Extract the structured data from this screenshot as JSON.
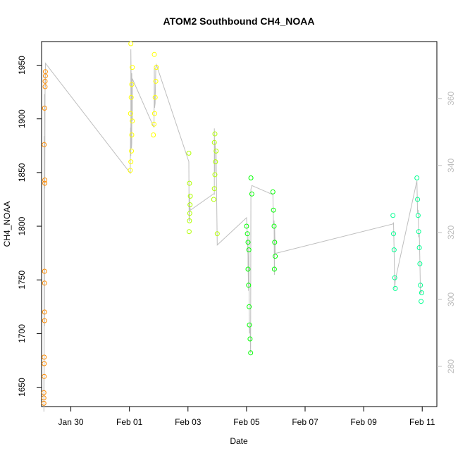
{
  "chart_data": {
    "type": "scatter",
    "title": "ATOM2 Southbound CH4_NOAA",
    "xlabel": "Date",
    "ylabel": "CH4_NOAA",
    "x_ticks": [
      "Jan 30",
      "Feb 01",
      "Feb 03",
      "Feb 05",
      "Feb 07",
      "Feb 09",
      "Feb 11"
    ],
    "y_ticks_left": [
      1650,
      1700,
      1750,
      1800,
      1850,
      1900,
      1950
    ],
    "y_ticks_right": [
      280,
      300,
      320,
      340,
      360
    ],
    "xlim": [
      "2017-01-29.0",
      "2017-02-11.5"
    ],
    "ylim_left": [
      1632,
      1972
    ],
    "ylim_right": [
      268,
      377
    ],
    "series": [
      {
        "color": "#ff8c00",
        "points": [
          [
            "2017-01-29.08",
            1645
          ],
          [
            "2017-01-29.08",
            1640
          ],
          [
            "2017-01-29.08",
            1635
          ],
          [
            "2017-01-29.09",
            1660
          ],
          [
            "2017-01-29.09",
            1672
          ],
          [
            "2017-01-29.09",
            1678
          ],
          [
            "2017-01-29.10",
            1712
          ],
          [
            "2017-01-29.10",
            1720
          ],
          [
            "2017-01-29.10",
            1747
          ],
          [
            "2017-01-29.10",
            1758
          ],
          [
            "2017-01-29.11",
            1840
          ],
          [
            "2017-01-29.11",
            1843
          ],
          [
            "2017-01-29.09",
            1876
          ],
          [
            "2017-01-29.10",
            1910
          ],
          [
            "2017-01-29.12",
            1930
          ],
          [
            "2017-01-29.12",
            1935
          ],
          [
            "2017-01-29.13",
            1940
          ],
          [
            "2017-01-29.13",
            1944
          ]
        ]
      },
      {
        "color": "#ffff00",
        "points": [
          [
            "2017-02-01.03",
            1852
          ],
          [
            "2017-02-01.05",
            1860
          ],
          [
            "2017-02-01.07",
            1870
          ],
          [
            "2017-02-01.08",
            1885
          ],
          [
            "2017-02-01.10",
            1898
          ],
          [
            "2017-02-01.04",
            1905
          ],
          [
            "2017-02-01.06",
            1920
          ],
          [
            "2017-02-01.08",
            1932
          ],
          [
            "2017-02-01.10",
            1948
          ],
          [
            "2017-02-01.05",
            1970
          ],
          [
            "2017-02-01.82",
            1885
          ],
          [
            "2017-02-01.84",
            1895
          ],
          [
            "2017-02-01.86",
            1905
          ],
          [
            "2017-02-01.88",
            1920
          ],
          [
            "2017-02-01.90",
            1935
          ],
          [
            "2017-02-01.92",
            1948
          ],
          [
            "2017-02-01.85",
            1960
          ]
        ]
      },
      {
        "color": "#b0ff00",
        "points": [
          [
            "2017-02-03.04",
            1795
          ],
          [
            "2017-02-03.05",
            1805
          ],
          [
            "2017-02-03.06",
            1812
          ],
          [
            "2017-02-03.07",
            1820
          ],
          [
            "2017-02-03.08",
            1828
          ],
          [
            "2017-02-03.05",
            1840
          ],
          [
            "2017-02-03.03",
            1868
          ],
          [
            "2017-02-03.88",
            1825
          ],
          [
            "2017-02-03.90",
            1835
          ],
          [
            "2017-02-03.92",
            1848
          ],
          [
            "2017-02-03.94",
            1860
          ],
          [
            "2017-02-03.96",
            1870
          ],
          [
            "2017-02-03.90",
            1878
          ],
          [
            "2017-02-03.92",
            1886
          ],
          [
            "2017-02-04.00",
            1793
          ]
        ]
      },
      {
        "color": "#00ff00",
        "points": [
          [
            "2017-02-05.00",
            1800
          ],
          [
            "2017-02-05.03",
            1793
          ],
          [
            "2017-02-05.05",
            1785
          ],
          [
            "2017-02-05.08",
            1778
          ],
          [
            "2017-02-05.05",
            1760
          ],
          [
            "2017-02-05.07",
            1745
          ],
          [
            "2017-02-05.09",
            1725
          ],
          [
            "2017-02-05.10",
            1708
          ],
          [
            "2017-02-05.12",
            1695
          ],
          [
            "2017-02-05.14",
            1682
          ],
          [
            "2017-02-05.15",
            1845
          ],
          [
            "2017-02-05.18",
            1830
          ],
          [
            "2017-02-05.90",
            1832
          ],
          [
            "2017-02-05.92",
            1815
          ],
          [
            "2017-02-05.94",
            1800
          ],
          [
            "2017-02-05.96",
            1785
          ],
          [
            "2017-02-05.98",
            1772
          ],
          [
            "2017-02-05.95",
            1760
          ]
        ]
      },
      {
        "color": "#00ff90",
        "points": [
          [
            "2017-02-10.00",
            1810
          ],
          [
            "2017-02-10.02",
            1793
          ],
          [
            "2017-02-10.04",
            1778
          ],
          [
            "2017-02-10.06",
            1752
          ],
          [
            "2017-02-10.08",
            1742
          ],
          [
            "2017-02-10.82",
            1845
          ],
          [
            "2017-02-10.84",
            1825
          ],
          [
            "2017-02-10.86",
            1810
          ],
          [
            "2017-02-10.88",
            1795
          ],
          [
            "2017-02-10.90",
            1780
          ],
          [
            "2017-02-10.92",
            1765
          ],
          [
            "2017-02-10.94",
            1745
          ],
          [
            "2017-02-10.96",
            1730
          ],
          [
            "2017-02-10.98",
            1738
          ]
        ]
      }
    ],
    "overlay_color": "#bebebe"
  }
}
